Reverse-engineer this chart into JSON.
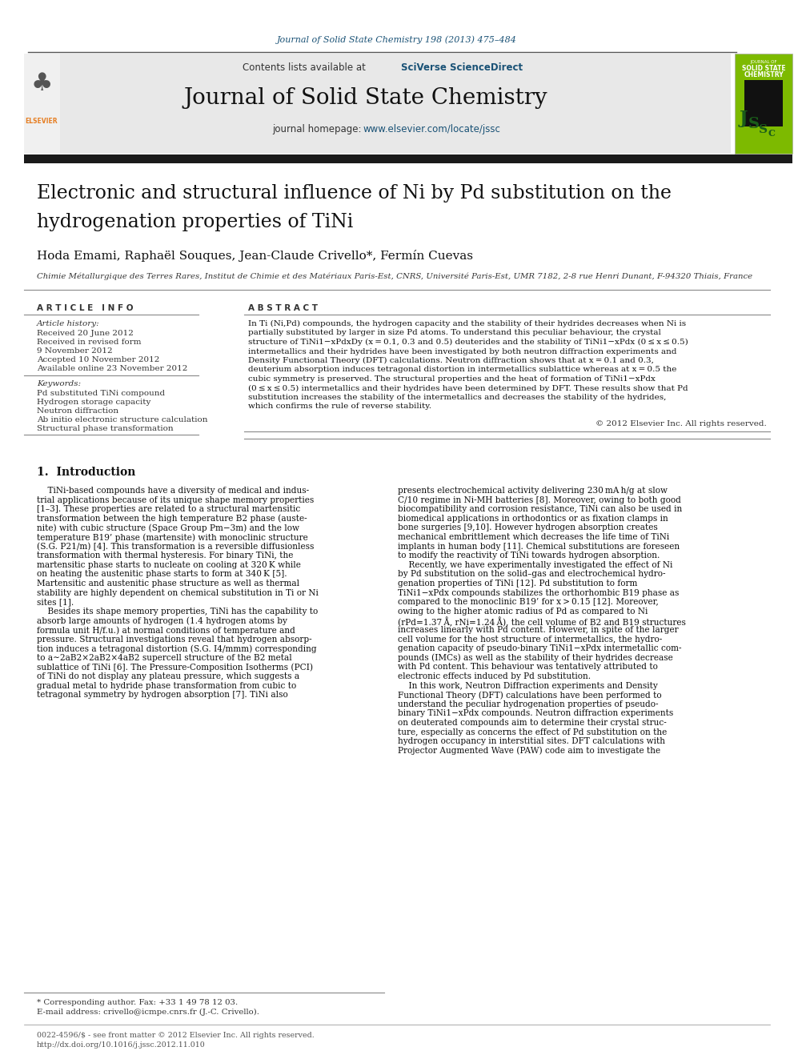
{
  "journal_ref": "Journal of Solid State Chemistry 198 (2013) 475–484",
  "journal_name": "Journal of Solid State Chemistry",
  "title_line1": "Electronic and structural influence of Ni by Pd substitution on the",
  "title_line2": "hydrogenation properties of TiNi",
  "authors": "Hoda Emami, Raphaël Souques, Jean-Claude Crivello*, Fermín Cuevas",
  "affiliation": "Chimie Métallurgique des Terres Rares, Institut de Chimie et des Matériaux Paris-Est, CNRS, Université Paris-Est, UMR 7182, 2-8 rue Henri Dunant, F-94320 Thiais, France",
  "article_info_header": "A R T I C L E   I N F O",
  "abstract_header": "A B S T R A C T",
  "article_history_label": "Article history:",
  "received1": "Received 20 June 2012",
  "received2": "Received in revised form",
  "received2b": "9 November 2012",
  "accepted": "Accepted 10 November 2012",
  "available": "Available online 23 November 2012",
  "keywords_label": "Keywords:",
  "kw1": "Pd substituted TiNi compound",
  "kw2": "Hydrogen storage capacity",
  "kw3": "Neutron diffraction",
  "kw4": "Ab initio electronic structure calculation",
  "kw5": "Structural phase transformation",
  "copyright": "© 2012 Elsevier Inc. All rights reserved.",
  "intro_header": "1.  Introduction",
  "footnote_star": "* Corresponding author. Fax: +33 1 49 78 12 03.",
  "footnote_email": "E-mail address: crivello@icmpe.cnrs.fr (J.-C. Crivello).",
  "footer1": "0022-4596/$ - see front matter © 2012 Elsevier Inc. All rights reserved.",
  "footer2": "http://dx.doi.org/10.1016/j.jssc.2012.11.010",
  "bg_color": "#ffffff",
  "header_bg": "#e8e8e8",
  "black_bar": "#1a1a1a",
  "link_color": "#1a5276",
  "orange_color": "#e67e22",
  "green_cover": "#7dba00",
  "abstract_lines": [
    "In Ti (Ni,Pd) compounds, the hydrogen capacity and the stability of their hydrides decreases when Ni is",
    "partially substituted by larger in size Pd atoms. To understand this peculiar behaviour, the crystal",
    "structure of TiNi1−xPdxDy (x = 0.1, 0.3 and 0.5) deuterides and the stability of TiNi1−xPdx (0 ≤ x ≤ 0.5)",
    "intermetallics and their hydrides have been investigated by both neutron diffraction experiments and",
    "Density Functional Theory (DFT) calculations. Neutron diffraction shows that at x = 0.1 and 0.3,",
    "deuterium absorption induces tetragonal distortion in intermetallics sublattice whereas at x = 0.5 the",
    "cubic symmetry is preserved. The structural properties and the heat of formation of TiNi1−xPdx",
    "(0 ≤ x ≤ 0.5) intermetallics and their hydrides have been determined by DFT. These results show that Pd",
    "substitution increases the stability of the intermetallics and decreases the stability of the hydrides,",
    "which confirms the rule of reverse stability."
  ],
  "intro_col1_lines": [
    "    TiNi-based compounds have a diversity of medical and indus-",
    "trial applications because of its unique shape memory properties",
    "[1–3]. These properties are related to a structural martensitic",
    "transformation between the high temperature B2 phase (auste-",
    "nite) with cubic structure (Space Group Pm−3m) and the low",
    "temperature B19’ phase (martensite) with monoclinic structure",
    "(S.G. P21/m) [4]. This transformation is a reversible diffusionless",
    "transformation with thermal hysteresis. For binary TiNi, the",
    "martensitic phase starts to nucleate on cooling at 320 K while",
    "on heating the austenitic phase starts to form at 340 K [5].",
    "Martensitic and austenitic phase structure as well as thermal",
    "stability are highly dependent on chemical substitution in Ti or Ni",
    "sites [1].",
    "    Besides its shape memory properties, TiNi has the capability to",
    "absorb large amounts of hydrogen (1.4 hydrogen atoms by",
    "formula unit H/f.u.) at normal conditions of temperature and",
    "pressure. Structural investigations reveal that hydrogen absorp-",
    "tion induces a tetragonal distortion (S.G. I4/mmm) corresponding",
    "to a∼2aB2×2aB2×4aB2 supercell structure of the B2 metal",
    "sublattice of TiNi [6]. The Pressure-Composition Isotherms (PCI)",
    "of TiNi do not display any plateau pressure, which suggests a",
    "gradual metal to hydride phase transformation from cubic to",
    "tetragonal symmetry by hydrogen absorption [7]. TiNi also"
  ],
  "intro_col2_lines": [
    "presents electrochemical activity delivering 230 mA h/g at slow",
    "C/10 regime in Ni-MH batteries [8]. Moreover, owing to both good",
    "biocompatibility and corrosion resistance, TiNi can also be used in",
    "biomedical applications in orthodontics or as fixation clamps in",
    "bone surgeries [9,10]. However hydrogen absorption creates",
    "mechanical embrittlement which decreases the life time of TiNi",
    "implants in human body [11]. Chemical substitutions are foreseen",
    "to modify the reactivity of TiNi towards hydrogen absorption.",
    "    Recently, we have experimentally investigated the effect of Ni",
    "by Pd substitution on the solid–gas and electrochemical hydro-",
    "genation properties of TiNi [12]. Pd substitution to form",
    "TiNi1−xPdx compounds stabilizes the orthorhombic B19 phase as",
    "compared to the monoclinic B19’ for x > 0.15 [12]. Moreover,",
    "owing to the higher atomic radius of Pd as compared to Ni",
    "(rPd=1.37 Å, rNi=1.24 Å), the cell volume of B2 and B19 structures",
    "increases linearly with Pd content. However, in spite of the larger",
    "cell volume for the host structure of intermetallics, the hydro-",
    "genation capacity of pseudo-binary TiNi1−xPdx intermetallic com-",
    "pounds (IMCs) as well as the stability of their hydrides decrease",
    "with Pd content. This behaviour was tentatively attributed to",
    "electronic effects induced by Pd substitution.",
    "    In this work, Neutron Diffraction experiments and Density",
    "Functional Theory (DFT) calculations have been performed to",
    "understand the peculiar hydrogenation properties of pseudo-",
    "binary TiNi1−xPdx compounds. Neutron diffraction experiments",
    "on deuterated compounds aim to determine their crystal struc-",
    "ture, especially as concerns the effect of Pd substitution on the",
    "hydrogen occupancy in interstitial sites. DFT calculations with",
    "Projector Augmented Wave (PAW) code aim to investigate the"
  ]
}
